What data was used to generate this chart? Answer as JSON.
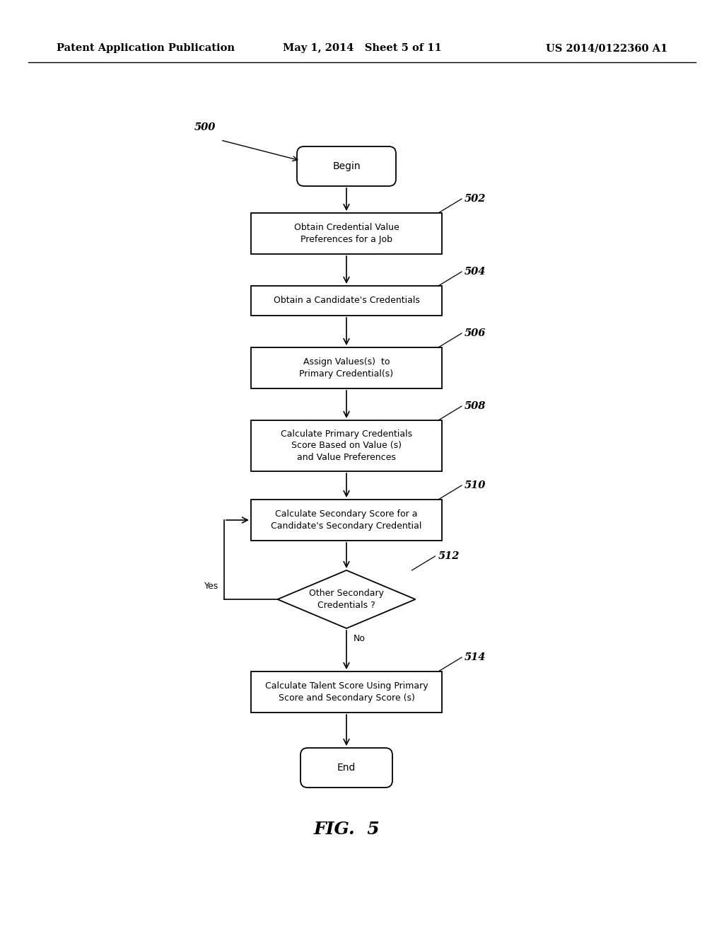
{
  "header_left": "Patent Application Publication",
  "header_mid": "May 1, 2014   Sheet 5 of 11",
  "header_right": "US 2014/0122360 A1",
  "fig_label": "FIG.  5",
  "bg_color": "#ffffff",
  "font_size_node": 9.0,
  "font_size_step": 10.5,
  "font_size_header": 10.5,
  "font_size_fig": 18
}
